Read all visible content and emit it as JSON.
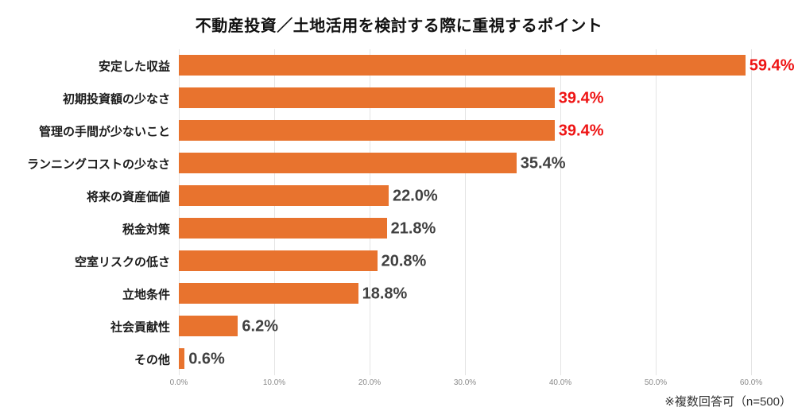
{
  "chart_data": {
    "type": "bar",
    "orientation": "horizontal",
    "title": "不動産投資／土地活用を検討する際に重視するポイント",
    "categories": [
      "安定した収益",
      "初期投資額の少なさ",
      "管理の手間が少ないこと",
      "ランニングコストの少なさ",
      "将来の資産価値",
      "税金対策",
      "空室リスクの低さ",
      "立地条件",
      "社会貢献性",
      "その他"
    ],
    "values": [
      59.4,
      39.4,
      39.4,
      35.4,
      22.0,
      21.8,
      20.8,
      18.8,
      6.2,
      0.6
    ],
    "value_labels": [
      "59.4%",
      "39.4%",
      "39.4%",
      "35.4%",
      "22.0%",
      "21.8%",
      "20.8%",
      "18.8%",
      "6.2%",
      "0.6%"
    ],
    "emphasized": [
      true,
      true,
      true,
      false,
      false,
      false,
      false,
      false,
      false,
      false
    ],
    "x_ticks": [
      "0.0%",
      "10.0%",
      "20.0%",
      "30.0%",
      "40.0%",
      "50.0%",
      "60.0%"
    ],
    "xlim": [
      0,
      60
    ],
    "grid": true,
    "legend": "none",
    "bar_color": "#e8732e",
    "value_color_emphasis": "#ee1414",
    "value_color_normal": "#404040",
    "footnote": "※複数回答可（n=500）"
  }
}
